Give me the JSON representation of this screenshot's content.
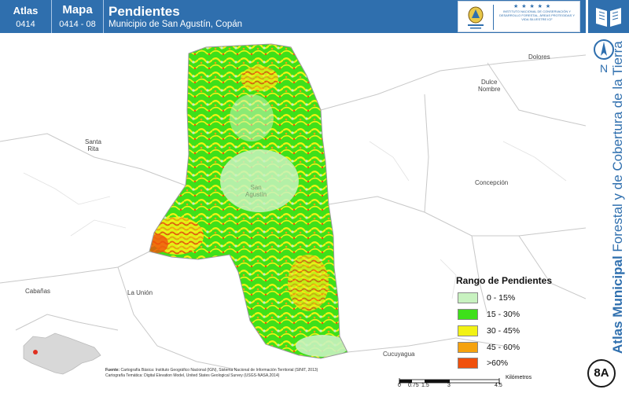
{
  "header": {
    "atlas_label": "Atlas",
    "atlas_code": "0414",
    "map_label": "Mapa",
    "map_code": "0414 - 08",
    "title": "Pendientes",
    "subtitle": "Municipio de San Agustín, Copán"
  },
  "logos": {
    "gov_text": "GOBIERNO DE LA REPÚBLICA DE HONDURAS",
    "icf_text": "INSTITUTO NACIONAL DE CONSERVACIÓN Y DESARROLLO FORESTAL, ÁREAS PROTEGIDAS Y VIDA SILVESTRE ICF",
    "stars": "★ ★ ★ ★ ★"
  },
  "side_title": {
    "bold": "Atlas Municipal",
    "rest": " Forestal y de Cobertura de la Tierra"
  },
  "north_label": "N",
  "places": [
    {
      "id": "dolores",
      "name": "Dolores"
    },
    {
      "id": "dulce-nombre",
      "name": "Dulce\nNombre"
    },
    {
      "id": "santa-rita",
      "name": "Santa\nRita"
    },
    {
      "id": "san-agustin",
      "name": "San\nAgustín"
    },
    {
      "id": "concepcion",
      "name": "Concepción"
    },
    {
      "id": "cabanas",
      "name": "Cabañas"
    },
    {
      "id": "la-union",
      "name": "La Unión"
    },
    {
      "id": "cucuyagua",
      "name": "Cucuyagua"
    }
  ],
  "legend": {
    "title": "Rango de Pendientes",
    "items": [
      {
        "label": "0 - 15%",
        "color": "#c8f2c0"
      },
      {
        "label": "15 - 30%",
        "color": "#3ee01a"
      },
      {
        "label": "30 - 45%",
        "color": "#f2f214"
      },
      {
        "label": "45 - 60%",
        "color": "#f5a20e"
      },
      {
        "label": ">60%",
        "color": "#f0500c"
      }
    ]
  },
  "source": {
    "label": "Fuente:",
    "line1": "Cartografía Básica: Instituto Geográfico Nacional (IGN), Sistema Nacional de Información Territorial (SINIT, 2013)",
    "line2": "Cartografía Temática: Digital Elevation Model, United States Geological Survey (USGS-NASA,2014)"
  },
  "scale": {
    "ticks": [
      "0",
      "0.75",
      "1.5",
      "3",
      "4.5"
    ],
    "unit": "Kilómetros"
  },
  "badge": "8A"
}
